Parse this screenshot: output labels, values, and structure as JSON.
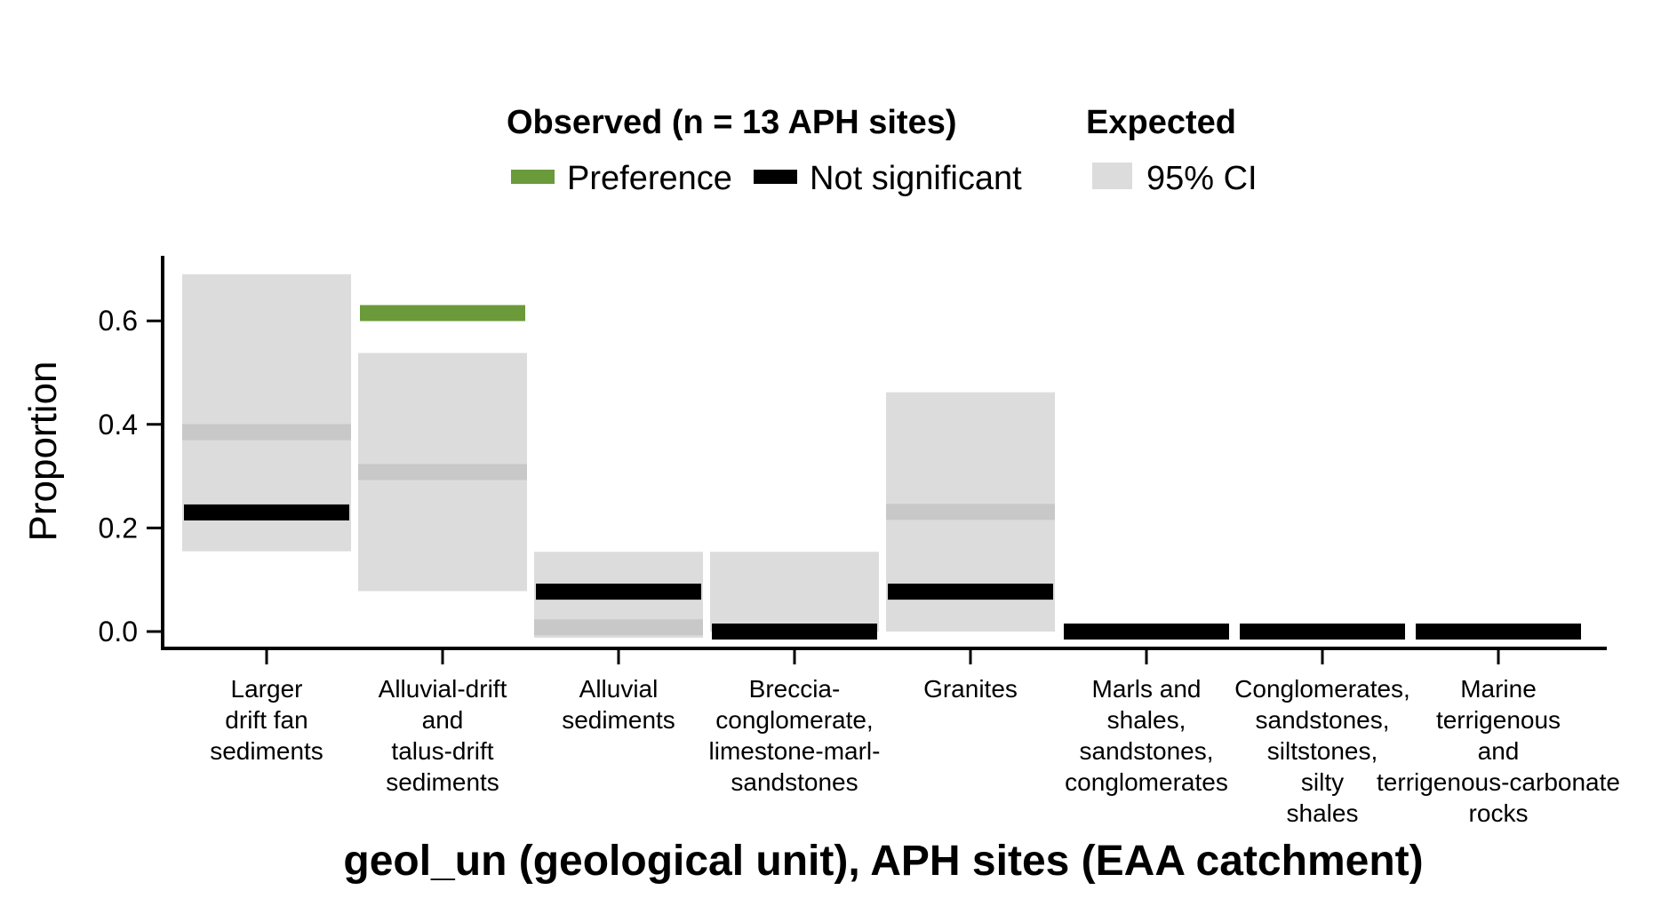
{
  "legend": {
    "observed_title": "Observed (n = 13 APH sites)",
    "expected_title": "Expected",
    "items": [
      {
        "label": "Preference",
        "color": "#6a9a3a"
      },
      {
        "label": "Not significant",
        "color": "#000000"
      },
      {
        "label": "95% CI",
        "color": "#dcdcdc"
      }
    ]
  },
  "chart_data": {
    "type": "bar",
    "xlabel": "geol_un (geological unit), APH sites (EAA catchment)",
    "ylabel": "Proportion",
    "yticks": [
      "0.0",
      "0.2",
      "0.4",
      "0.6"
    ],
    "categories": [
      [
        "Larger",
        "drift fan",
        "sediments"
      ],
      [
        "Alluvial-drift",
        "and",
        "talus-drift",
        "sediments"
      ],
      [
        "Alluvial",
        "sediments"
      ],
      [
        "Breccia-",
        "conglomerate,",
        "limestone-marl-",
        "sandstones"
      ],
      [
        "Granites"
      ],
      [
        "Marls and",
        "shales,",
        "sandstones,",
        "conglomerates"
      ],
      [
        "Conglomerates,",
        "sandstones,",
        "siltstones,",
        "silty",
        "shales"
      ],
      [
        "Marine",
        "terrigenous",
        "and",
        "terrigenous-carbonate",
        "rocks"
      ]
    ],
    "series": [
      {
        "name": "Observed",
        "values": [
          0.23,
          0.615,
          0.077,
          0.0,
          0.077,
          0.0,
          0.0,
          0.0
        ],
        "status": [
          "Not significant",
          "Preference",
          "Not significant",
          "Not significant",
          "Not significant",
          "Not significant",
          "Not significant",
          "Not significant"
        ]
      },
      {
        "name": "Expected",
        "values": [
          0.385,
          0.308,
          0.008,
          null,
          0.231,
          null,
          null,
          null
        ]
      }
    ],
    "ci_low": [
      0.155,
      0.078,
      -0.012,
      0.0,
      0.0,
      null,
      null,
      null
    ],
    "ci_high": [
      0.69,
      0.538,
      0.154,
      0.154,
      0.462,
      null,
      null,
      null
    ],
    "ylim": [
      -0.03,
      0.72
    ],
    "colors": {
      "preference": "#6a9a3a",
      "not_significant": "#000000",
      "ci": "#dcdcdc",
      "expected": "#c8c8c8"
    }
  }
}
